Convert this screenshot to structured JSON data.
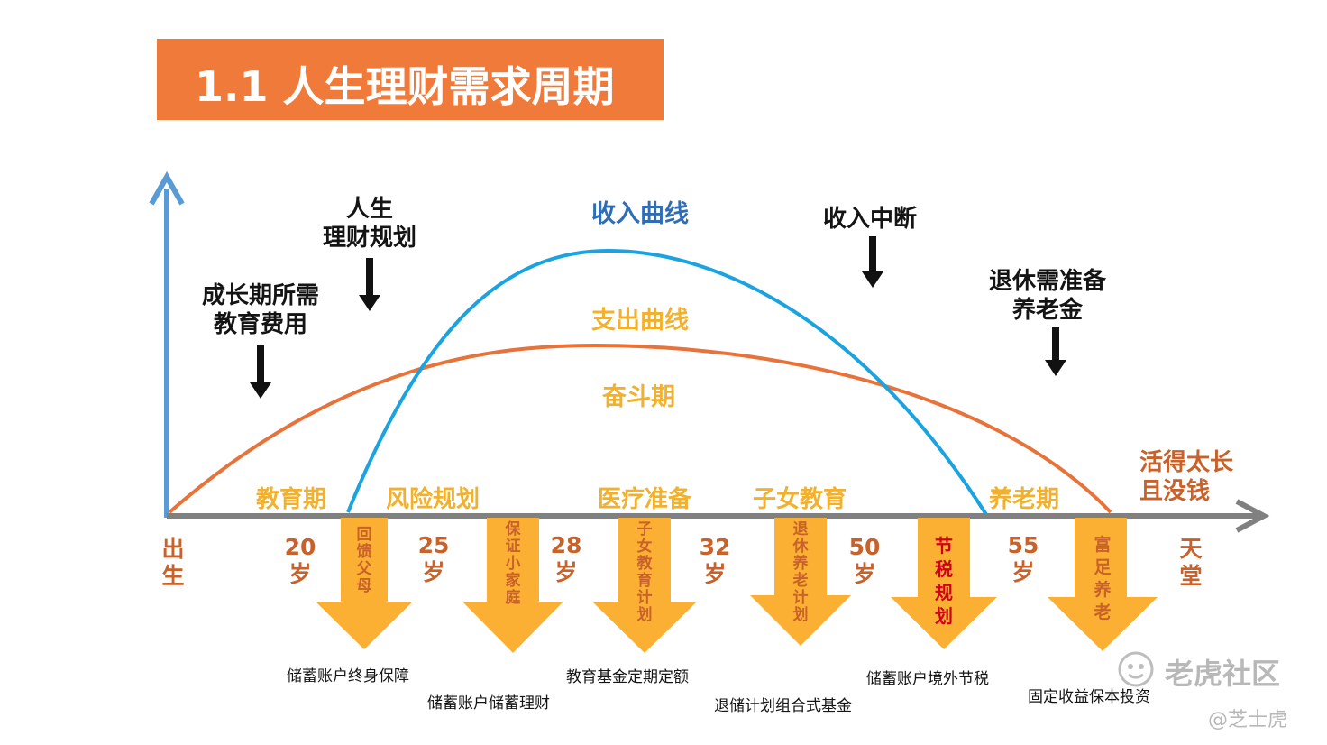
{
  "title": "1.1 人生理财需求周期",
  "curves": {
    "income_label": "收入曲线",
    "expense_label": "支出曲线",
    "struggle_label": "奋斗期"
  },
  "annotations": {
    "growth_education": [
      "成长期所需",
      "教育费用"
    ],
    "life_planning": [
      "人生",
      "理财规划"
    ],
    "income_interrupt": "收入中断",
    "retirement_prep": [
      "退休需准备",
      "养老金"
    ],
    "live_too_long": [
      "活得太长",
      "且没钱"
    ]
  },
  "phases": [
    "教育期",
    "风险规划",
    "医疗准备",
    "子女教育",
    "养老期"
  ],
  "ages": [
    [
      "出",
      "生"
    ],
    [
      "20",
      "岁"
    ],
    [
      "25",
      "岁"
    ],
    [
      "28",
      "岁"
    ],
    [
      "32",
      "岁"
    ],
    [
      "50",
      "岁"
    ],
    [
      "55",
      "岁"
    ],
    [
      "天",
      "堂"
    ]
  ],
  "arrows": [
    {
      "text": "回馈父母",
      "caption": "储蓄账户终身保障",
      "color": "#C8622A"
    },
    {
      "text": "保证小家庭",
      "caption": "储蓄账户储蓄理财",
      "color": "#C8622A"
    },
    {
      "text": "子女教育计划",
      "caption": "教育基金定期定额",
      "color": "#C8622A"
    },
    {
      "text": "退休养老计划",
      "caption": "退储计划组合式基金",
      "color": "#C8622A"
    },
    {
      "text": "节税规划",
      "caption": "储蓄账户境外节税",
      "color": "#D0021B"
    },
    {
      "text": "富足养老",
      "caption": "固定收益保本投资",
      "color": "#C8622A"
    }
  ],
  "watermark": {
    "brand": "老虎社区",
    "handle": "@芝士虎"
  },
  "colors": {
    "title_bg": "#F07A3A",
    "income": "#1AA3E0",
    "expense": "#E8733A",
    "axis_y": "#5B9BD5",
    "axis_x": "#808080",
    "arrow": "#FBB034"
  }
}
